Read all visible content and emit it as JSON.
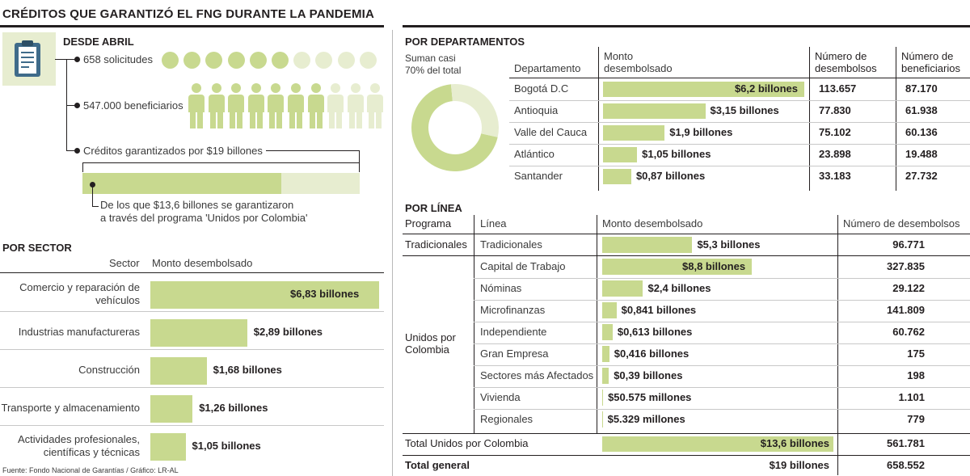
{
  "title": "CRÉDITOS QUE GARANTIZÓ EL FNG DURANTE LA PANDEMIA",
  "desde_abril": {
    "title": "DESDE ABRIL",
    "icon": "clipboard-icon",
    "solicitudes": "658 solicitudes",
    "solicitudes_filled": 6,
    "solicitudes_total": 10,
    "beneficiarios": "547.000 beneficiarios",
    "beneficiarios_filled": 7,
    "beneficiarios_total": 10,
    "creditos": "Créditos garantizados por $19 billones",
    "creditos_total": 19,
    "unidos_value": 13.6,
    "unidos_note_1": "De los que $13,6 billones se garantizaron",
    "unidos_note_2": "a través del programa 'Unidos por Colombia'"
  },
  "colors": {
    "bar": "#c8d98f",
    "bar_light": "#e7edd0",
    "text": "#231f20",
    "muted": "#3a3a3a"
  },
  "por_sector": {
    "title": "POR SECTOR",
    "col_sector": "Sector",
    "col_monto": "Monto desembolsado",
    "rows": [
      {
        "sector_1": "Comercio y reparación de",
        "sector_2": "vehículos",
        "label": "$6,83 billones",
        "value": 6.83
      },
      {
        "sector_1": "Industrias manufactureras",
        "sector_2": "",
        "label": "$2,89 billones",
        "value": 2.89
      },
      {
        "sector_1": "Construcción",
        "sector_2": "",
        "label": "$1,68 billones",
        "value": 1.68
      },
      {
        "sector_1": "Transporte y almacenamiento",
        "sector_2": "",
        "label": "$1,26 billones",
        "value": 1.26
      },
      {
        "sector_1": "Actividades profesionales,",
        "sector_2": "científicas y técnicas",
        "label": "$1,05 billones",
        "value": 1.05
      }
    ]
  },
  "source": "Fuente: Fondo Nacional de Garantías / Gráfico: LR-AL",
  "por_departamentos": {
    "title": "POR DEPARTAMENTOS",
    "donut_note_1": "Suman casi",
    "donut_note_2": "70% del total",
    "donut_fraction": 0.7,
    "col_departamento": "Departamento",
    "col_monto_1": "Monto",
    "col_monto_2": "desembolsado",
    "col_desemb_1": "Número de",
    "col_desemb_2": "desembolsos",
    "col_benef_1": "Número de",
    "col_benef_2": "beneficiarios",
    "rows": [
      {
        "name": "Bogotá D.C",
        "label": "$6,2 billones",
        "value": 6.2,
        "desembolsos": "113.657",
        "beneficiarios": "87.170"
      },
      {
        "name": "Antioquia",
        "label": "$3,15 billones",
        "value": 3.15,
        "desembolsos": "77.830",
        "beneficiarios": "61.938"
      },
      {
        "name": "Valle del Cauca",
        "label": "$1,9 billones",
        "value": 1.9,
        "desembolsos": "75.102",
        "beneficiarios": "60.136"
      },
      {
        "name": "Atlántico",
        "label": "$1,05 billones",
        "value": 1.05,
        "desembolsos": "23.898",
        "beneficiarios": "19.488"
      },
      {
        "name": "Santander",
        "label": "$0,87 billones",
        "value": 0.87,
        "desembolsos": "33.183",
        "beneficiarios": "27.732"
      }
    ]
  },
  "por_linea": {
    "title": "POR LÍNEA",
    "col_programa": "Programa",
    "col_linea": "Línea",
    "col_monto": "Monto desembolsado",
    "col_numero": "Número de desembolsos",
    "programa_tradicionales": "Tradicionales",
    "programa_unidos_1": "Unidos por",
    "programa_unidos_2": "Colombia",
    "rows": [
      {
        "linea": "Tradicionales",
        "label": "$5,3 billones",
        "value": 5.3,
        "numero": "96.771"
      },
      {
        "linea": "Capital de Trabajo",
        "label": "$8,8 billones",
        "value": 8.8,
        "numero": "327.835"
      },
      {
        "linea": "Nóminas",
        "label": "$2,4 billones",
        "value": 2.4,
        "numero": "29.122"
      },
      {
        "linea": "Microfinanzas",
        "label": "$0,841 billones",
        "value": 0.841,
        "numero": "141.809"
      },
      {
        "linea": "Independiente",
        "label": "$0,613 billones",
        "value": 0.613,
        "numero": "60.762"
      },
      {
        "linea": "Gran Empresa",
        "label": "$0,416 billones",
        "value": 0.416,
        "numero": "175"
      },
      {
        "linea": "Sectores más Afectados",
        "label": "$0,39 billones",
        "value": 0.39,
        "numero": "198"
      },
      {
        "linea": "Vivienda",
        "label": "$50.575 millones",
        "value": 0.050575,
        "numero": "1.101"
      },
      {
        "linea": "Regionales",
        "label": "$5.329 millones",
        "value": 0.005329,
        "numero": "779"
      }
    ],
    "total_unidos_label": "Total Unidos por Colombia",
    "total_unidos_monto": "$13,6 billones",
    "total_unidos_value": 13.6,
    "total_unidos_numero": "561.781",
    "total_general_label": "Total general",
    "total_general_monto": "$19 billones",
    "total_general_numero": "658.552"
  },
  "chart_data": [
    {
      "type": "bar",
      "title": "POR SECTOR",
      "categories": [
        "Comercio y reparación de vehículos",
        "Industrias manufactureras",
        "Construcción",
        "Transporte y almacenamiento",
        "Actividades profesionales, científicas y técnicas"
      ],
      "values": [
        6.83,
        2.89,
        1.68,
        1.26,
        1.05
      ],
      "xlabel": "Monto desembolsado",
      "ylabel": "Sector"
    },
    {
      "type": "table",
      "title": "POR DEPARTAMENTOS",
      "categories": [
        "Bogotá D.C",
        "Antioquia",
        "Valle del Cauca",
        "Atlántico",
        "Santander"
      ],
      "series": [
        {
          "name": "Monto desembolsado",
          "values": [
            6.2,
            3.15,
            1.9,
            1.05,
            0.87
          ]
        },
        {
          "name": "Número de desembolsos",
          "values": [
            113657,
            77830,
            75102,
            23898,
            33183
          ]
        },
        {
          "name": "Número de beneficiarios",
          "values": [
            87170,
            61938,
            60136,
            19488,
            27732
          ]
        }
      ]
    },
    {
      "type": "pie",
      "title": "",
      "categories": [
        "",
        ""
      ],
      "values": [
        70,
        30
      ]
    },
    {
      "type": "table",
      "title": "POR LÍNEA",
      "categories": [
        "Tradicionales",
        "Capital de Trabajo",
        "Nóminas",
        "Microfinanzas",
        "Independiente",
        "Gran Empresa",
        "Sectores más Afectados",
        "Vivienda",
        "Regionales"
      ],
      "series": [
        {
          "name": "Monto desembolsado",
          "values": [
            5.3,
            8.8,
            2.4,
            0.841,
            0.613,
            0.416,
            0.39,
            0.050575,
            0.005329
          ]
        },
        {
          "name": "Número de desembolsos",
          "values": [
            96771,
            327835,
            29122,
            141809,
            60762,
            175,
            198,
            1101,
            779
          ]
        }
      ]
    }
  ]
}
